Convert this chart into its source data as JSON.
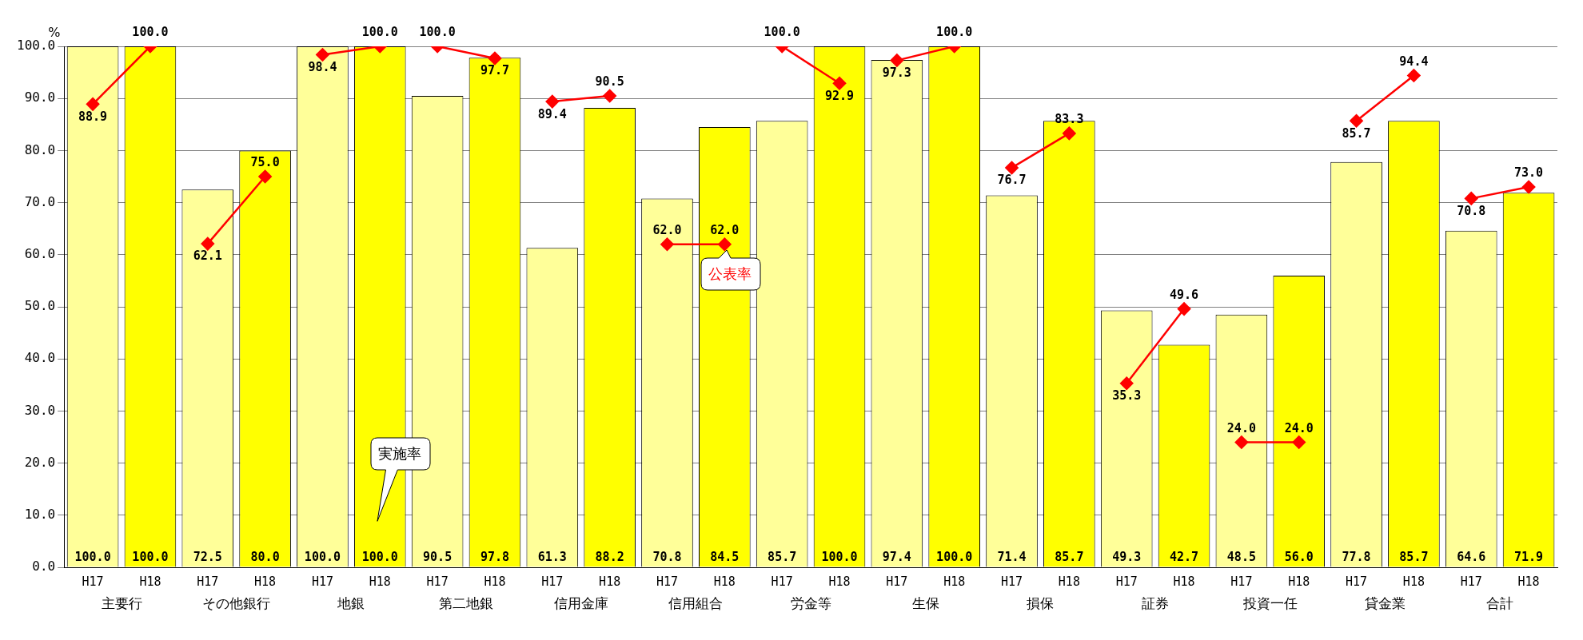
{
  "chart_data": {
    "type": "bar",
    "ylabel": "%",
    "categories": [
      "H17",
      "H18",
      "H17",
      "H18",
      "H17",
      "H18",
      "H17",
      "H18",
      "H17",
      "H18",
      "H17",
      "H18",
      "H17",
      "H18",
      "H17",
      "H18",
      "H17",
      "H18",
      "H17",
      "H18",
      "H17",
      "H18",
      "H17",
      "H18",
      "H17",
      "H18"
    ],
    "annotations": [
      "主要行",
      "その他銀行",
      "地銀",
      "第二地銀",
      "信用金庫",
      "信用組合",
      "労金等",
      "生保",
      "損保",
      "証券",
      "投資一任",
      "貸金業",
      "合計"
    ],
    "series": [
      {
        "name": "実施率",
        "colors": [
          "#ffff99",
          "#ffff00",
          "#ffff99",
          "#ffff00",
          "#ffff99",
          "#ffff00",
          "#ffff99",
          "#ffff00",
          "#ffff99",
          "#ffff00",
          "#ffff99",
          "#ffff00",
          "#ffff99",
          "#ffff00",
          "#ffff99",
          "#ffff00",
          "#ffff99",
          "#ffff00",
          "#ffff99",
          "#ffff00",
          "#ffff99",
          "#ffff00",
          "#ffff99",
          "#ffff00",
          "#ffff99",
          "#ffff00"
        ],
        "values": [
          100.0,
          100.0,
          72.5,
          80.0,
          100.0,
          100.0,
          90.5,
          97.8,
          61.3,
          88.2,
          70.8,
          84.5,
          85.7,
          100.0,
          97.4,
          100.0,
          71.4,
          85.7,
          49.3,
          42.7,
          48.5,
          56.0,
          77.8,
          85.7,
          64.6,
          71.9
        ],
        "value_labels": [
          "100.0",
          "100.0",
          "72.5",
          "80.0",
          "100.0",
          "100.0",
          "90.5",
          "97.8",
          "61.3",
          "88.2",
          "70.8",
          "84.5",
          "85.7",
          "100.0",
          "97.4",
          "100.0",
          "71.4",
          "85.7",
          "49.3",
          "42.7",
          "48.5",
          "56.0",
          "77.8",
          "85.7",
          "64.6",
          "71.9"
        ]
      },
      {
        "name": "公表率",
        "type": "line",
        "color": "#ff0000",
        "values": [
          88.9,
          100.0,
          62.1,
          75.0,
          98.4,
          100.0,
          100.0,
          97.7,
          89.4,
          90.5,
          62.0,
          62.0,
          100.0,
          92.9,
          97.3,
          100.0,
          76.7,
          83.3,
          35.3,
          49.6,
          24.0,
          24.0,
          85.7,
          94.4,
          70.8,
          73.0
        ],
        "value_labels": [
          "88.9",
          "100.0",
          "62.1",
          "75.0",
          "98.4",
          "100.0",
          "100.0",
          "97.7",
          "89.4",
          "90.5",
          "62.0",
          "62.0",
          "100.0",
          "92.9",
          "97.3",
          "100.0",
          "76.7",
          "83.3",
          "35.3",
          "49.6",
          "24.0",
          "24.0",
          "85.7",
          "94.4",
          "70.8",
          "73.0"
        ]
      }
    ],
    "ylim": [
      0,
      100
    ],
    "yticks": [
      {
        "value": 0,
        "label": "0.0"
      },
      {
        "value": 10,
        "label": "10.0"
      },
      {
        "value": 20,
        "label": "20.0"
      },
      {
        "value": 30,
        "label": "30.0"
      },
      {
        "value": 40,
        "label": "40.0"
      },
      {
        "value": 50,
        "label": "50.0"
      },
      {
        "value": 60,
        "label": "60.0"
      },
      {
        "value": 70,
        "label": "70.0"
      },
      {
        "value": 80,
        "label": "80.0"
      },
      {
        "value": 90,
        "label": "90.0"
      },
      {
        "value": 100,
        "label": "100.0"
      }
    ],
    "grid": "y",
    "legend": false,
    "marker": "diamond",
    "line_style": "solid"
  }
}
